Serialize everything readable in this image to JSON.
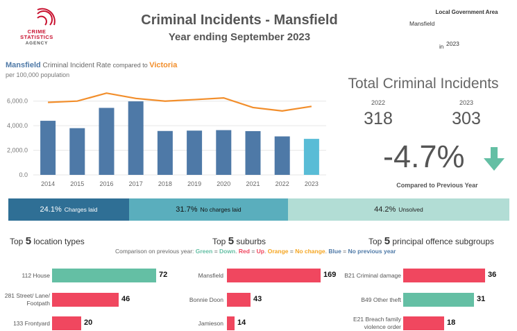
{
  "header": {
    "logo": {
      "line1": "CRIME",
      "line2": "STATISTICS",
      "line3": "AGENCY"
    },
    "title": "Criminal Incidents - Mansfield",
    "subtitle": "Year ending September 2023",
    "lga_label": "Local Government Area",
    "lga_value": "Mansfield",
    "in_label": "in",
    "year_value": "2023"
  },
  "rate_chart": {
    "heading_area": "Mansfield",
    "heading_mid": " Criminal Incident Rate ",
    "heading_compared": "compared to ",
    "heading_state": "Victoria",
    "subheading": "per 100,000 population"
  },
  "chart_data": {
    "type": "bar",
    "categories": [
      "2014",
      "2015",
      "2016",
      "2017",
      "2018",
      "2019",
      "2020",
      "2021",
      "2022",
      "2023"
    ],
    "series": [
      {
        "name": "Mansfield",
        "kind": "bar",
        "values": [
          4400,
          3800,
          5450,
          5980,
          3570,
          3600,
          3640,
          3560,
          3130,
          2930
        ],
        "color": "#4e79a7",
        "highlight_last": "#59bcd6"
      },
      {
        "name": "Victoria",
        "kind": "line",
        "values": [
          5900,
          6000,
          6650,
          6220,
          6000,
          6120,
          6260,
          5480,
          5200,
          5570
        ],
        "color": "#f28e2b"
      }
    ],
    "ytick_labels": [
      "0.0",
      "2,000.0",
      "4,000.0",
      "6,000.0"
    ],
    "yticks": [
      0,
      2000,
      4000,
      6000
    ],
    "ylim": [
      0,
      7000
    ],
    "grid": true
  },
  "totals": {
    "title": "Total Criminal Incidents",
    "year_a": "2022",
    "value_a": "318",
    "year_b": "2023",
    "value_b": "303",
    "change": "-4.7%",
    "change_label": "Compared to Previous Year",
    "arrow_color": "#64bfa4"
  },
  "outcomes": [
    {
      "pct": "24.1%",
      "label": "Charges laid",
      "share": 24.1,
      "color": "#2f6f95",
      "text_color": "#ffffff"
    },
    {
      "pct": "31.7%",
      "label": "No charges laid",
      "share": 31.7,
      "color": "#5aaebd",
      "text_color": "#111111"
    },
    {
      "pct": "44.2%",
      "label": "Unsolved",
      "share": 44.2,
      "color": "#b2ddd5",
      "text_color": "#222222"
    }
  ],
  "sections": {
    "location": {
      "pre": "Top ",
      "num": "5",
      "post": " location types"
    },
    "suburbs": {
      "pre": "Top ",
      "num": "5",
      "post": " suburbs"
    },
    "offence": {
      "pre": "Top ",
      "num": "5",
      "post": " principal offence subgroups"
    }
  },
  "legend": {
    "prefix": "Comparison on previous year: ",
    "green": "Green",
    "eq1": " = ",
    "down": "Down",
    "sep1": ". ",
    "red": "Red",
    "eq2": " = ",
    "up": "Up",
    "sep2": ". ",
    "orange": "Orange",
    "eq3": " = ",
    "nochange": "No change",
    "sep3": ". ",
    "blue": "Blue",
    "eq4": " = ",
    "noprev": "No previous year"
  },
  "colors": {
    "green": "#64bfa4",
    "red": "#f0475f",
    "orange": "#f5a623",
    "blue": "#4e79a7"
  },
  "location_types": [
    {
      "label": "112 House",
      "value": 72,
      "status": "green"
    },
    {
      "label": "281 Street/ Lane/ Footpath",
      "value": 46,
      "status": "red"
    },
    {
      "label": "133 Frontyard",
      "value": 20,
      "status": "red"
    }
  ],
  "suburbs": [
    {
      "label": "Mansfield",
      "value": 169,
      "status": "red"
    },
    {
      "label": "Bonnie Doon",
      "value": 43,
      "status": "red"
    },
    {
      "label": "Jamieson",
      "value": 14,
      "status": "red"
    }
  ],
  "offences": [
    {
      "label": "B21 Criminal damage",
      "value": 36,
      "status": "red"
    },
    {
      "label": "B49 Other theft",
      "value": 31,
      "status": "green"
    },
    {
      "label": "E21 Breach family violence order",
      "value": 18,
      "status": "red"
    }
  ]
}
